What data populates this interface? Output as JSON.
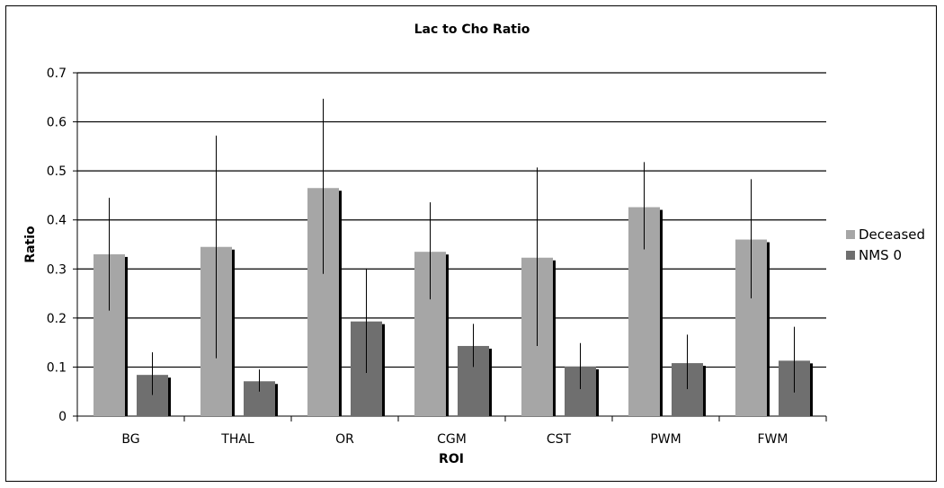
{
  "chart_data": {
    "type": "bar",
    "title": "Lac to Cho Ratio",
    "xlabel": "ROI",
    "ylabel": "Ratio",
    "ylim": [
      0,
      0.7
    ],
    "yticks": [
      0,
      0.1,
      0.2,
      0.3,
      0.4,
      0.5,
      0.6,
      0.7
    ],
    "ytick_labels": [
      "0",
      "0.1",
      "0.2",
      "0.3",
      "0.4",
      "0.5",
      "0.6",
      "0.7"
    ],
    "grid": true,
    "legend_position": "right",
    "categories": [
      "BG",
      "THAL",
      "OR",
      "CGM",
      "CST",
      "PWM",
      "FWM"
    ],
    "series": [
      {
        "name": "Deceased",
        "color": "#a6a6a6",
        "values": [
          0.33,
          0.345,
          0.465,
          0.335,
          0.323,
          0.426,
          0.36
        ],
        "error_low": [
          0.215,
          0.118,
          0.29,
          0.238,
          0.143,
          0.34,
          0.24
        ],
        "error_high": [
          0.445,
          0.572,
          0.647,
          0.436,
          0.507,
          0.518,
          0.483
        ]
      },
      {
        "name": "NMS 0",
        "color": "#6f6f6f",
        "values": [
          0.084,
          0.071,
          0.193,
          0.143,
          0.101,
          0.108,
          0.113
        ],
        "error_low": [
          0.043,
          0.05,
          0.088,
          0.1,
          0.055,
          0.055,
          0.048
        ],
        "error_high": [
          0.13,
          0.095,
          0.301,
          0.188,
          0.149,
          0.166,
          0.182
        ]
      }
    ]
  }
}
